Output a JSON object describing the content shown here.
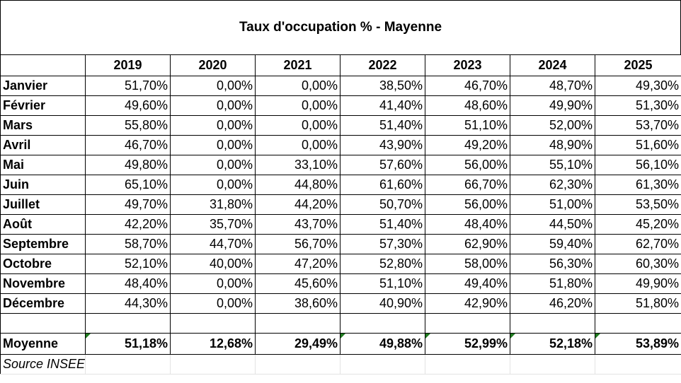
{
  "title": "Taux d'occupation % - Mayenne",
  "chart_data": {
    "type": "table",
    "title": "Taux d'occupation % - Mayenne",
    "columns": [
      "2019",
      "2020",
      "2021",
      "2022",
      "2023",
      "2024",
      "2025"
    ],
    "rows": [
      {
        "label": "Janvier",
        "values": [
          "51,70%",
          "0,00%",
          "0,00%",
          "38,50%",
          "46,70%",
          "48,70%",
          "49,30%"
        ]
      },
      {
        "label": "Février",
        "values": [
          "49,60%",
          "0,00%",
          "0,00%",
          "41,40%",
          "48,60%",
          "49,90%",
          "51,30%"
        ]
      },
      {
        "label": "Mars",
        "values": [
          "55,80%",
          "0,00%",
          "0,00%",
          "51,40%",
          "51,10%",
          "52,00%",
          "53,70%"
        ]
      },
      {
        "label": "Avril",
        "values": [
          "46,70%",
          "0,00%",
          "0,00%",
          "43,90%",
          "49,20%",
          "48,90%",
          "51,60%"
        ]
      },
      {
        "label": "Mai",
        "values": [
          "49,80%",
          "0,00%",
          "33,10%",
          "57,60%",
          "56,00%",
          "55,10%",
          "56,10%"
        ]
      },
      {
        "label": "Juin",
        "values": [
          "65,10%",
          "0,00%",
          "44,80%",
          "61,60%",
          "66,70%",
          "62,30%",
          "61,30%"
        ]
      },
      {
        "label": "Juillet",
        "values": [
          "49,70%",
          "31,80%",
          "44,20%",
          "50,70%",
          "56,00%",
          "51,00%",
          "53,50%"
        ]
      },
      {
        "label": "Août",
        "values": [
          "42,20%",
          "35,70%",
          "43,70%",
          "51,40%",
          "48,40%",
          "44,50%",
          "45,20%"
        ]
      },
      {
        "label": "Septembre",
        "values": [
          "58,70%",
          "44,70%",
          "56,70%",
          "57,30%",
          "62,90%",
          "59,40%",
          "62,70%"
        ]
      },
      {
        "label": "Octobre",
        "values": [
          "52,10%",
          "40,00%",
          "47,20%",
          "52,80%",
          "58,00%",
          "56,30%",
          "60,30%"
        ]
      },
      {
        "label": "Novembre",
        "values": [
          "48,40%",
          "0,00%",
          "45,60%",
          "51,10%",
          "49,40%",
          "51,80%",
          "49,90%"
        ]
      },
      {
        "label": "Décembre",
        "values": [
          "44,30%",
          "0,00%",
          "38,60%",
          "40,90%",
          "42,90%",
          "46,20%",
          "51,80%"
        ]
      }
    ],
    "average": {
      "label": "Moyenne",
      "values": [
        "51,18%",
        "12,68%",
        "29,49%",
        "49,88%",
        "52,99%",
        "52,18%",
        "53,89%"
      ]
    },
    "source": "Source INSEE"
  },
  "colors": {
    "error_flag": "#1f7a1f",
    "grid": "#000000"
  }
}
